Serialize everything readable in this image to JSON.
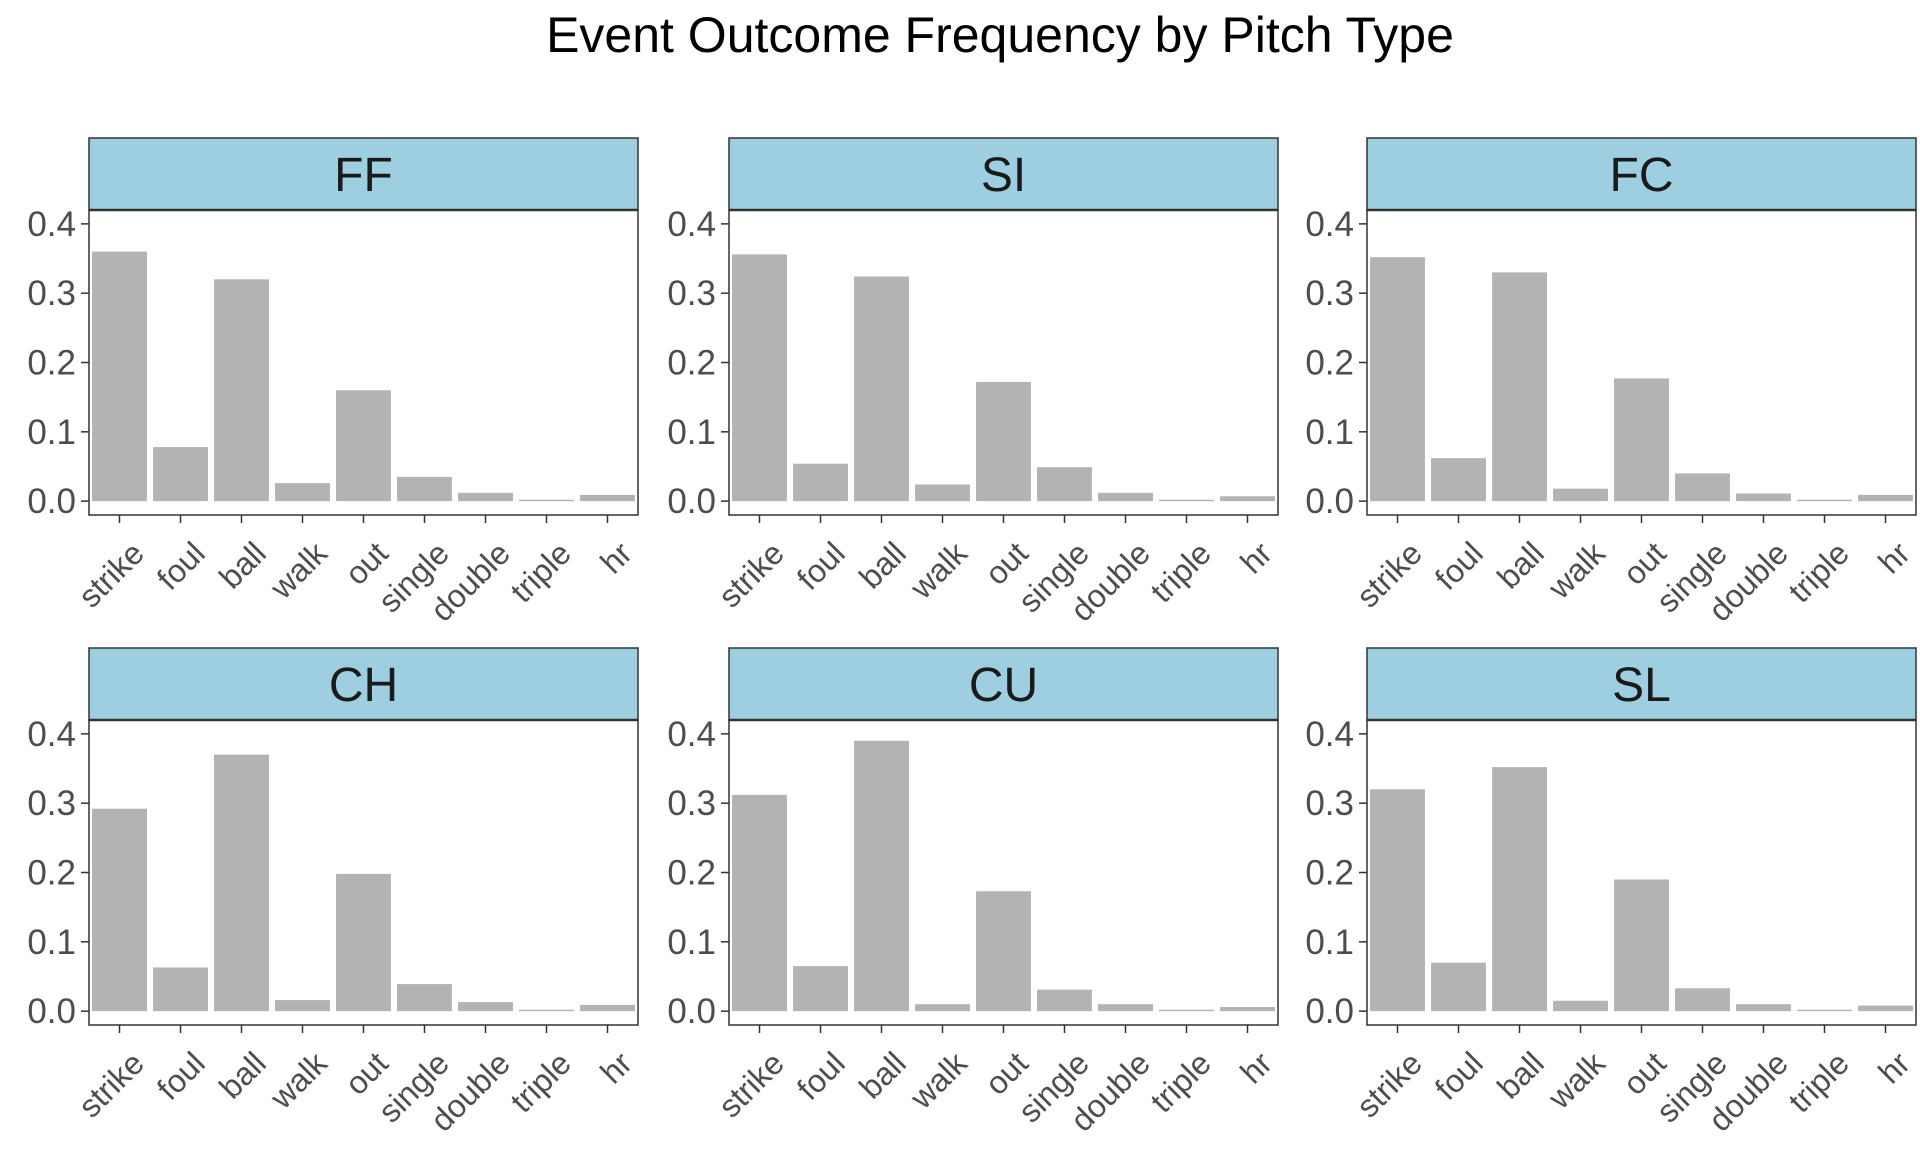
{
  "chart_data": {
    "type": "bar",
    "title": "Event Outcome Frequency by Pitch Type",
    "categories": [
      "strike",
      "foul",
      "ball",
      "walk",
      "out",
      "single",
      "double",
      "triple",
      "hr"
    ],
    "y_ticks": [
      "0.0",
      "0.1",
      "0.2",
      "0.3",
      "0.4"
    ],
    "ylim": [
      -0.02,
      0.42
    ],
    "facets": [
      {
        "name": "FF",
        "values": [
          0.36,
          0.078,
          0.32,
          0.026,
          0.16,
          0.035,
          0.012,
          0.002,
          0.009
        ]
      },
      {
        "name": "SI",
        "values": [
          0.356,
          0.054,
          0.324,
          0.024,
          0.172,
          0.049,
          0.012,
          0.002,
          0.007
        ]
      },
      {
        "name": "FC",
        "values": [
          0.352,
          0.062,
          0.33,
          0.018,
          0.177,
          0.04,
          0.011,
          0.002,
          0.009
        ]
      },
      {
        "name": "CH",
        "values": [
          0.292,
          0.063,
          0.37,
          0.016,
          0.198,
          0.039,
          0.013,
          0.002,
          0.009
        ]
      },
      {
        "name": "CU",
        "values": [
          0.312,
          0.065,
          0.39,
          0.01,
          0.173,
          0.031,
          0.01,
          0.002,
          0.006
        ]
      },
      {
        "name": "SL",
        "values": [
          0.32,
          0.07,
          0.352,
          0.015,
          0.19,
          0.033,
          0.01,
          0.002,
          0.008
        ]
      }
    ],
    "colors": {
      "bar": "#b3b3b3",
      "strip": "#9ecfe1",
      "panel_border": "#333333",
      "text": "#4d4d4d",
      "title": "#000000"
    },
    "grid": false,
    "legend": "none"
  }
}
